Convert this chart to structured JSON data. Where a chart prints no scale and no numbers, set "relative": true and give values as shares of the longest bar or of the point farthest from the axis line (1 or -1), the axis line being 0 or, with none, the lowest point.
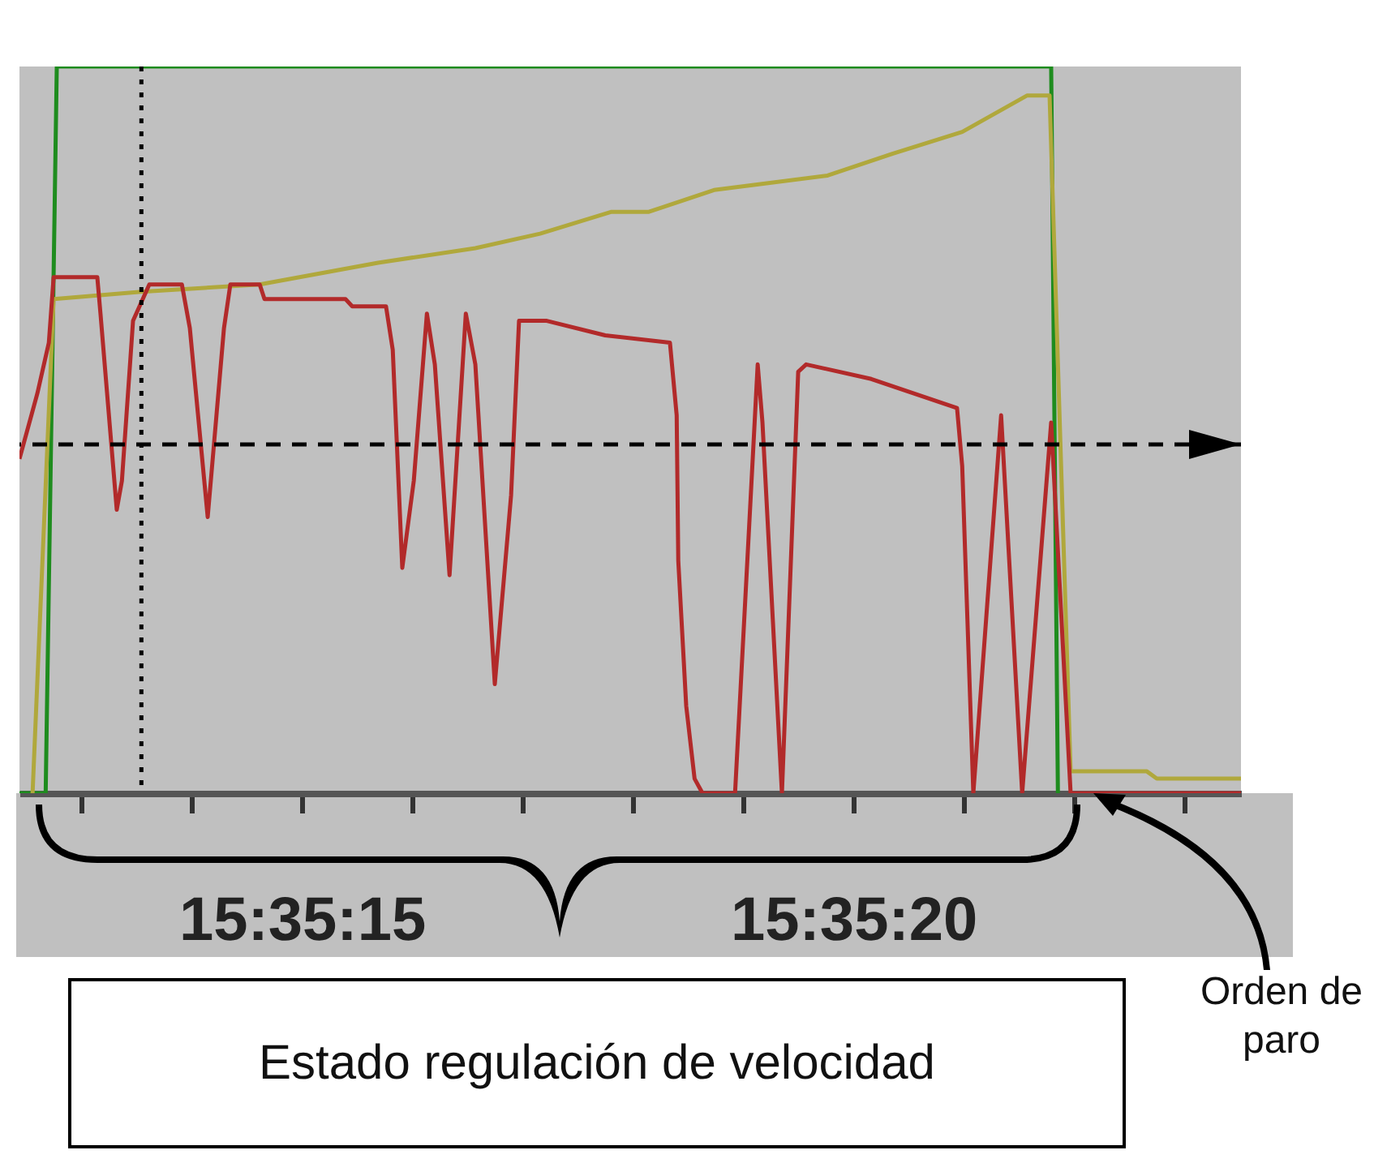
{
  "chart_data": {
    "type": "line",
    "relative": true,
    "xlim": [
      15.586789,
      15.589865
    ],
    "xticks": [
      {
        "value": 15.586944,
        "label": null
      },
      {
        "value": 15.587222,
        "label": null
      },
      {
        "value": 15.5875,
        "label": "15:35:15"
      },
      {
        "value": 15.587778,
        "label": null
      },
      {
        "value": 15.588056,
        "label": null
      },
      {
        "value": 15.588333,
        "label": null
      },
      {
        "value": 15.588611,
        "label": null
      },
      {
        "value": 15.588889,
        "label": "15:35:20"
      },
      {
        "value": 15.589167,
        "label": null
      },
      {
        "value": 15.589444,
        "label": null
      },
      {
        "value": 15.589722,
        "label": null
      }
    ],
    "series": [
      {
        "color": "#1e8c1e",
        "x": [
          15.586789,
          15.586855,
          15.586883,
          15.589387,
          15.589404
        ],
        "values": [
          0,
          0,
          1,
          1,
          0
        ]
      },
      {
        "color": "#b0a83c",
        "x": [
          15.586822,
          15.586875,
          15.587096,
          15.587394,
          15.587692,
          15.587937,
          15.5881,
          15.58828,
          15.588374,
          15.588538,
          15.588824,
          15.588987,
          15.589163,
          15.589326,
          15.589383,
          15.589436,
          15.589628,
          15.589653,
          15.589865
        ],
        "values": [
          0,
          0.68,
          0.69,
          0.7,
          0.73,
          0.75,
          0.77,
          0.8,
          0.8,
          0.83,
          0.85,
          0.88,
          0.91,
          0.96,
          0.96,
          0.03,
          0.03,
          0.02,
          0.02
        ]
      },
      {
        "color": "#b22a2a",
        "x": [
          15.586789,
          15.586834,
          15.586863,
          15.586875,
          15.586985,
          15.586993,
          15.587034,
          15.587047,
          15.587075,
          15.587116,
          15.587198,
          15.587218,
          15.587263,
          15.587304,
          15.58732,
          15.587394,
          15.587406,
          15.58761,
          15.587627,
          15.587712,
          15.587729,
          15.587753,
          15.587782,
          15.587815,
          15.587835,
          15.587872,
          15.587913,
          15.587937,
          15.587986,
          15.588027,
          15.588047,
          15.588117,
          15.588264,
          15.588427,
          15.588444,
          15.588448,
          15.588468,
          15.588489,
          15.588509,
          15.588591,
          15.588648,
          15.58866,
          15.588709,
          15.58875,
          15.58877,
          15.588934,
          15.58915,
          15.589163,
          15.589191,
          15.589261,
          15.589314,
          15.589387,
          15.589436,
          15.589865
        ],
        "values": [
          0.46,
          0.55,
          0.62,
          0.71,
          0.71,
          0.66,
          0.39,
          0.43,
          0.65,
          0.7,
          0.7,
          0.64,
          0.38,
          0.64,
          0.7,
          0.7,
          0.68,
          0.68,
          0.67,
          0.67,
          0.61,
          0.31,
          0.43,
          0.66,
          0.59,
          0.3,
          0.66,
          0.59,
          0.15,
          0.41,
          0.65,
          0.65,
          0.63,
          0.62,
          0.52,
          0.32,
          0.12,
          0.02,
          0,
          0,
          0.59,
          0.51,
          0,
          0.58,
          0.59,
          0.57,
          0.53,
          0.45,
          0,
          0.52,
          0,
          0.51,
          0,
          0
        ]
      }
    ],
    "ref_lines": [
      {
        "axis": "y",
        "value": 0.48,
        "color": "#000000",
        "line_style": "dashed"
      },
      {
        "axis": "x",
        "value": 15.587096,
        "color": "#000000",
        "line_style": "dotted"
      }
    ],
    "annotations": [
      "Orden de paro",
      "Estado regulación de velocidad"
    ]
  }
}
